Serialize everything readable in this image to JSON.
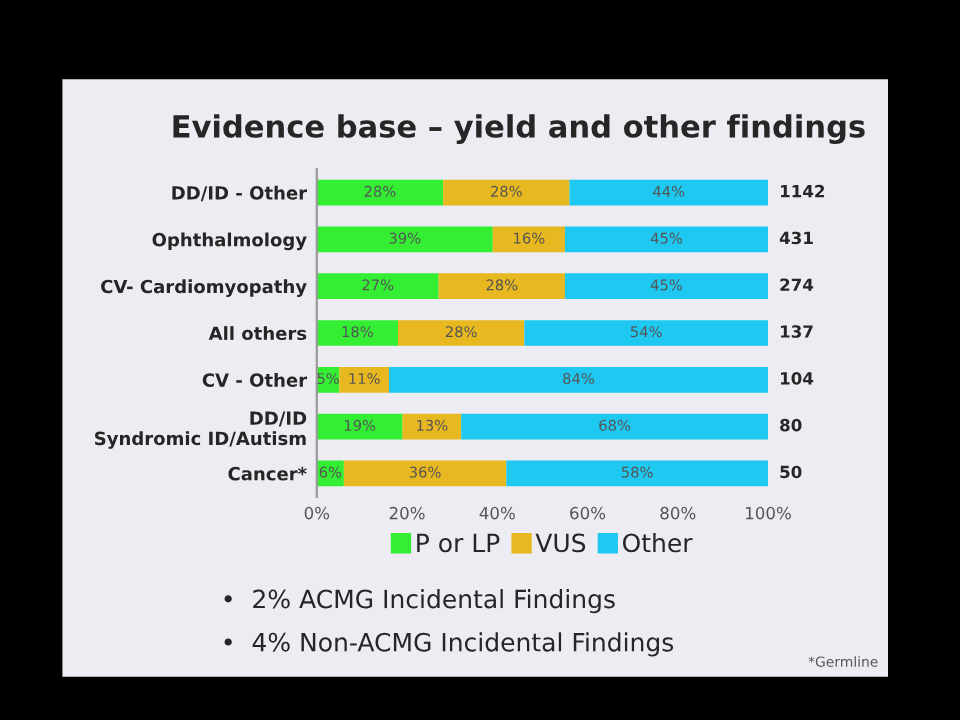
{
  "chart_data": {
    "type": "bar",
    "orientation": "horizontal",
    "stacked": true,
    "title": "Evidence base – yield and other findings",
    "categories": [
      "DD/ID - Other",
      "Ophthalmology",
      "CV- Cardiomyopathy",
      "All others",
      "CV - Other",
      "DD/ID\nSyndromic ID/Autism",
      "Cancer*"
    ],
    "series": [
      {
        "name": "P or LP",
        "color": "#33ee33",
        "values": [
          28,
          39,
          27,
          18,
          5,
          19,
          6
        ],
        "value_labels": [
          "28%",
          "39%",
          "27%",
          "18%",
          "5%",
          "19%",
          "6%"
        ]
      },
      {
        "name": "VUS",
        "color": "#e8b820",
        "values": [
          28,
          16,
          28,
          28,
          11,
          13,
          36
        ],
        "value_labels": [
          "28%",
          "16%",
          "28%",
          "28%",
          "11%",
          "13%",
          "36%"
        ]
      },
      {
        "name": "Other",
        "color": "#1ec8f0",
        "values": [
          44,
          45,
          45,
          54,
          84,
          68,
          58
        ],
        "value_labels": [
          "44%",
          "45%",
          "45%",
          "54%",
          "84%",
          "68%",
          "58%"
        ]
      }
    ],
    "xlim": [
      0,
      100
    ],
    "xticks": [
      {
        "value": 0,
        "label": "0%"
      },
      {
        "value": 20,
        "label": "20%"
      },
      {
        "value": 40,
        "label": "40%"
      },
      {
        "value": 60,
        "label": "60%"
      },
      {
        "value": 80,
        "label": "80%"
      },
      {
        "value": 100,
        "label": "100%"
      }
    ],
    "legend": "bottom",
    "grid": false,
    "annotations": [
      "1142",
      "431",
      "274",
      "137",
      "104",
      "80",
      "50",
      "•  2% ACMG Incidental Findings",
      "•  4% Non-ACMG Incidental Findings",
      "*Germline"
    ]
  }
}
